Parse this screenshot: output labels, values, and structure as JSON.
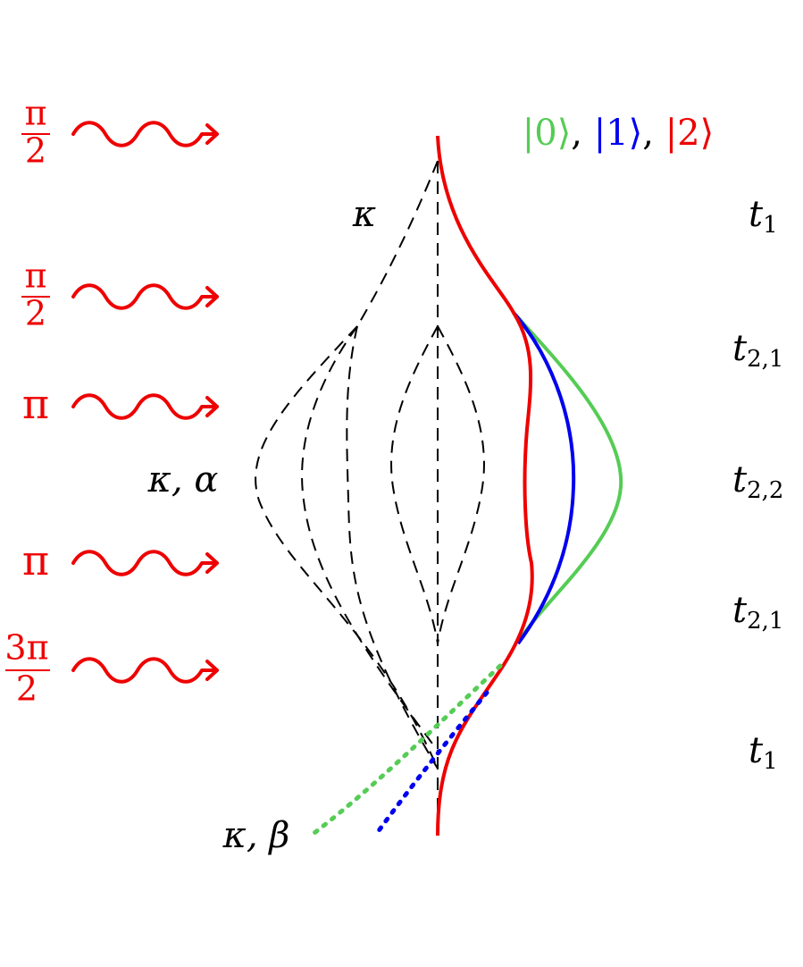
{
  "pulses": [
    {
      "numerator": "π",
      "denominator": "2"
    },
    {
      "numerator": "π",
      "denominator": "2"
    },
    {
      "label": "π"
    },
    {
      "label": "π"
    },
    {
      "numerator": "3π",
      "denominator": "2"
    }
  ],
  "parameters": {
    "top": "κ",
    "middle": "κ, α",
    "bottom": "κ, β"
  },
  "legend": [
    "|0⟩",
    ", ",
    "|1⟩",
    ", ",
    "|2⟩"
  ],
  "times": [
    {
      "base": "t",
      "sub": "1"
    },
    {
      "base": "t",
      "sub": "2,1"
    },
    {
      "base": "t",
      "sub": "2,2"
    },
    {
      "base": "t",
      "sub": "2,1"
    },
    {
      "base": "t",
      "sub": "1"
    }
  ]
}
